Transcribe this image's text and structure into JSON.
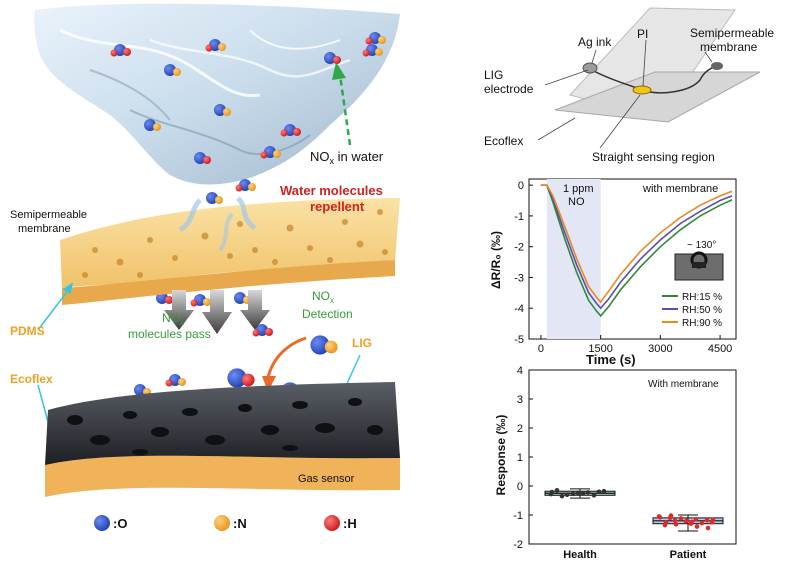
{
  "left": {
    "nox_in_water_prefix": "NO",
    "nox_in_water_sub": "x",
    "nox_in_water_suffix": " in water",
    "water_repellent_line1": "Water molecules",
    "water_repellent_line2": "repellent",
    "membrane_line1": "Semipermeable",
    "membrane_line2": "membrane",
    "nox_pass_prefix": "NO",
    "nox_pass_sub": "x",
    "nox_pass_line2": "molecules pass",
    "nox_detect_prefix": "NO",
    "nox_detect_sub": "x",
    "nox_detect_line2": "Detection",
    "pdms": "PDMS",
    "lig": "LIG",
    "ecoflex": "Ecoflex",
    "gas_sensor": "Gas sensor",
    "legend": [
      {
        "label": ":O",
        "color": "#2c55d4"
      },
      {
        "label": ":N",
        "color": "#f2a62a"
      },
      {
        "label": ":H",
        "color": "#e02a2a"
      }
    ]
  },
  "device": {
    "ag_ink": "Ag ink",
    "pi": "PI",
    "membrane_line1": "Semipermeable",
    "membrane_line2": "membrane",
    "lig_line1": "LIG",
    "lig_line2": "electrode",
    "ecoflex": "Ecoflex",
    "sensing": "Straight sensing region"
  },
  "chart_data": [
    {
      "type": "line",
      "xlabel": "Time (s)",
      "ylabel": "ΔR/R₀ (‰)",
      "xlim": [
        -300,
        4900
      ],
      "ylim": [
        -5,
        0.2
      ],
      "xticks": [
        "0",
        "1500",
        "3000",
        "4500"
      ],
      "yticks": [
        "0",
        "-1",
        "-2",
        "-3",
        "-4",
        "-5"
      ],
      "annotation_line1": "1 ppm",
      "annotation_line2": "NO",
      "annotation_span": [
        150,
        1500
      ],
      "corner_label": "with membrane",
      "angle_label": "~ 130°",
      "series": [
        {
          "name": "RH:15 %",
          "color": "#2e8a3a",
          "x": [
            0,
            150,
            300,
            600,
            900,
            1200,
            1400,
            1500,
            1700,
            2000,
            2500,
            3000,
            3500,
            4000,
            4500,
            4800
          ],
          "y": [
            0,
            0,
            -0.55,
            -1.75,
            -2.85,
            -3.75,
            -4.1,
            -4.25,
            -3.95,
            -3.4,
            -2.65,
            -2.0,
            -1.45,
            -1.0,
            -0.65,
            -0.48
          ]
        },
        {
          "name": "RH:50 %",
          "color": "#5a4fb0",
          "x": [
            0,
            150,
            300,
            600,
            900,
            1200,
            1400,
            1500,
            1700,
            2000,
            2500,
            3000,
            3500,
            4000,
            4500,
            4800
          ],
          "y": [
            0,
            0,
            -0.45,
            -1.55,
            -2.6,
            -3.5,
            -3.85,
            -4.0,
            -3.7,
            -3.15,
            -2.4,
            -1.78,
            -1.25,
            -0.85,
            -0.5,
            -0.35
          ]
        },
        {
          "name": "RH:90 %",
          "color": "#e88a20",
          "x": [
            0,
            150,
            300,
            600,
            900,
            1200,
            1400,
            1500,
            1700,
            2000,
            2500,
            3000,
            3500,
            4000,
            4500,
            4800
          ],
          "y": [
            0,
            0,
            -0.35,
            -1.35,
            -2.4,
            -3.3,
            -3.65,
            -3.8,
            -3.45,
            -2.9,
            -2.15,
            -1.55,
            -1.05,
            -0.65,
            -0.35,
            -0.2
          ]
        }
      ]
    },
    {
      "type": "box",
      "ylabel": "Response (‰)",
      "ylim": [
        -2,
        4
      ],
      "yticks": [
        "4",
        "3",
        "2",
        "1",
        "0",
        "-1",
        "-2"
      ],
      "corner_label": "With membrane",
      "categories": [
        "Health",
        "Patient"
      ],
      "boxes": [
        {
          "category": "Health",
          "q1": -0.32,
          "median": -0.25,
          "q3": -0.18,
          "min": -0.42,
          "max": -0.1,
          "fill": "#3aa57a",
          "point_color": "#333333",
          "points": [
            -0.28,
            -0.22,
            -0.3,
            -0.18,
            -0.26,
            -0.35,
            -0.2,
            -0.24,
            -0.15,
            -0.32,
            -0.27,
            -0.21
          ]
        },
        {
          "category": "Patient",
          "q1": -1.3,
          "median": -1.2,
          "q3": -1.1,
          "min": -1.55,
          "max": -1.0,
          "fill": "#5a8fd4",
          "point_color": "#e02a2a",
          "points": [
            -1.05,
            -1.15,
            -1.2,
            -1.25,
            -1.3,
            -1.1,
            -1.18,
            -1.22,
            -1.35,
            -1.28,
            -1.12,
            -1.08,
            -1.4,
            -1.32,
            -1.17,
            -1.24,
            -1.02,
            -1.45,
            -1.2,
            -1.26
          ]
        }
      ]
    }
  ]
}
